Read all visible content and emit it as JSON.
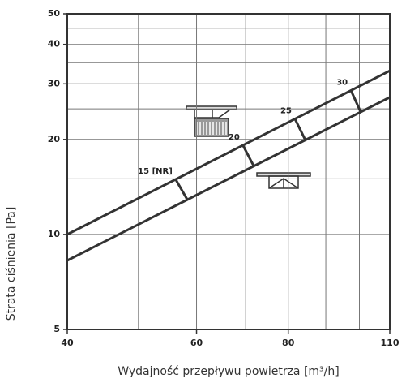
{
  "chart_data": {
    "type": "line",
    "log_x": true,
    "log_y": true,
    "x_label": "Wydajność przepływu powietrza [m³/h]",
    "y_label": "Strata ciśnienia [Pa]",
    "xlim": [
      40,
      110
    ],
    "xticks": [
      40,
      60,
      80,
      110
    ],
    "x_grid": [
      50,
      60,
      70,
      80,
      90,
      100
    ],
    "ylim": [
      5,
      50
    ],
    "yticks": [
      5,
      10,
      20,
      30,
      40,
      50
    ],
    "y_grid": [
      10,
      15,
      20,
      25,
      30,
      35,
      40,
      45,
      50
    ],
    "series": [
      {
        "color": "#333333",
        "x": [
          40,
          110
        ],
        "values": [
          10,
          33
        ]
      },
      {
        "color": "#333333",
        "x": [
          40,
          110
        ],
        "values": [
          8.27,
          27.2
        ]
      }
    ],
    "nr_markers": [
      {
        "label": "15 [NR]",
        "x_upper": 56.2,
        "x_lower": 58.3
      },
      {
        "label": "20",
        "x_upper": 69.4,
        "x_lower": 71.8
      },
      {
        "label": "25",
        "x_upper": 81.7,
        "x_lower": 84.4
      },
      {
        "label": "30",
        "x_upper": 97.4,
        "x_lower": 100.4
      }
    ]
  }
}
